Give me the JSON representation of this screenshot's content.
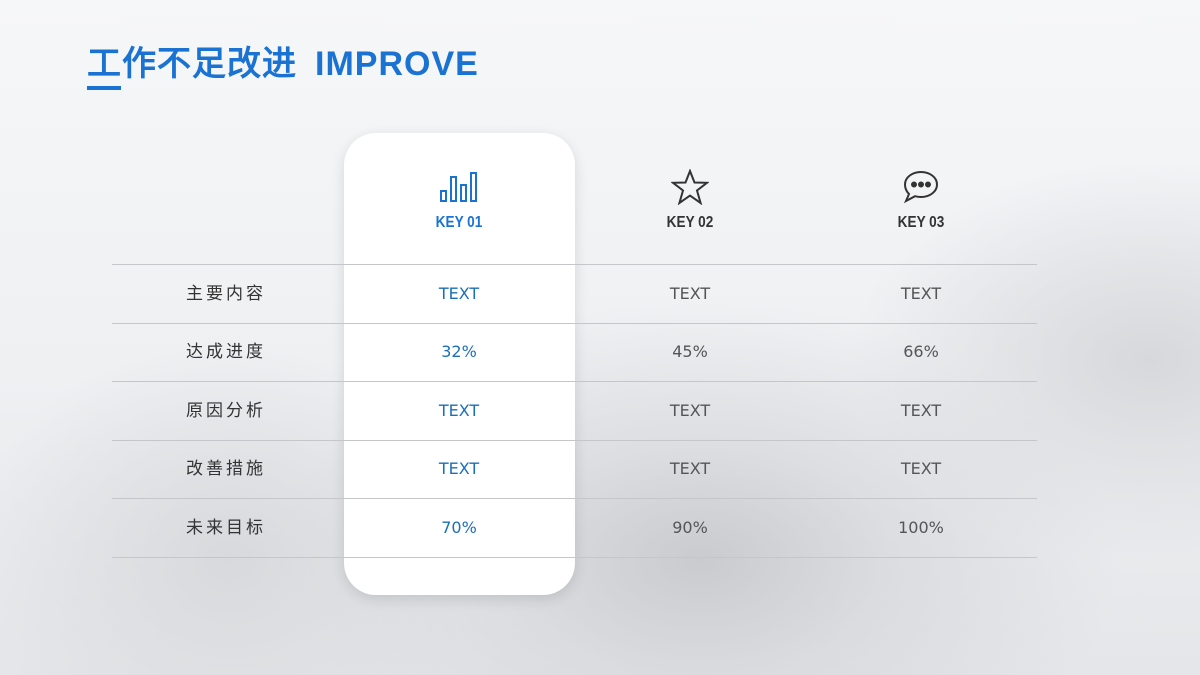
{
  "header": {
    "title_cn": "工作不足改进",
    "title_en": "IMPROVE"
  },
  "colors": {
    "accent": "#1a73d2",
    "text": "#333333"
  },
  "columns": [
    {
      "key": "KEY 01",
      "icon": "bar-chart-icon",
      "highlighted": true
    },
    {
      "key": "KEY 02",
      "icon": "star-icon",
      "highlighted": false
    },
    {
      "key": "KEY 03",
      "icon": "chat-bubble-icon",
      "highlighted": false
    }
  ],
  "rows": [
    {
      "label": "主要内容",
      "values": [
        "TEXT",
        "TEXT",
        "TEXT"
      ]
    },
    {
      "label": "达成进度",
      "values": [
        "32%",
        "45%",
        "66%"
      ]
    },
    {
      "label": "原因分析",
      "values": [
        "TEXT",
        "TEXT",
        "TEXT"
      ]
    },
    {
      "label": "改善措施",
      "values": [
        "TEXT",
        "TEXT",
        "TEXT"
      ]
    },
    {
      "label": "未来目标",
      "values": [
        "70%",
        "90%",
        "100%"
      ]
    }
  ]
}
